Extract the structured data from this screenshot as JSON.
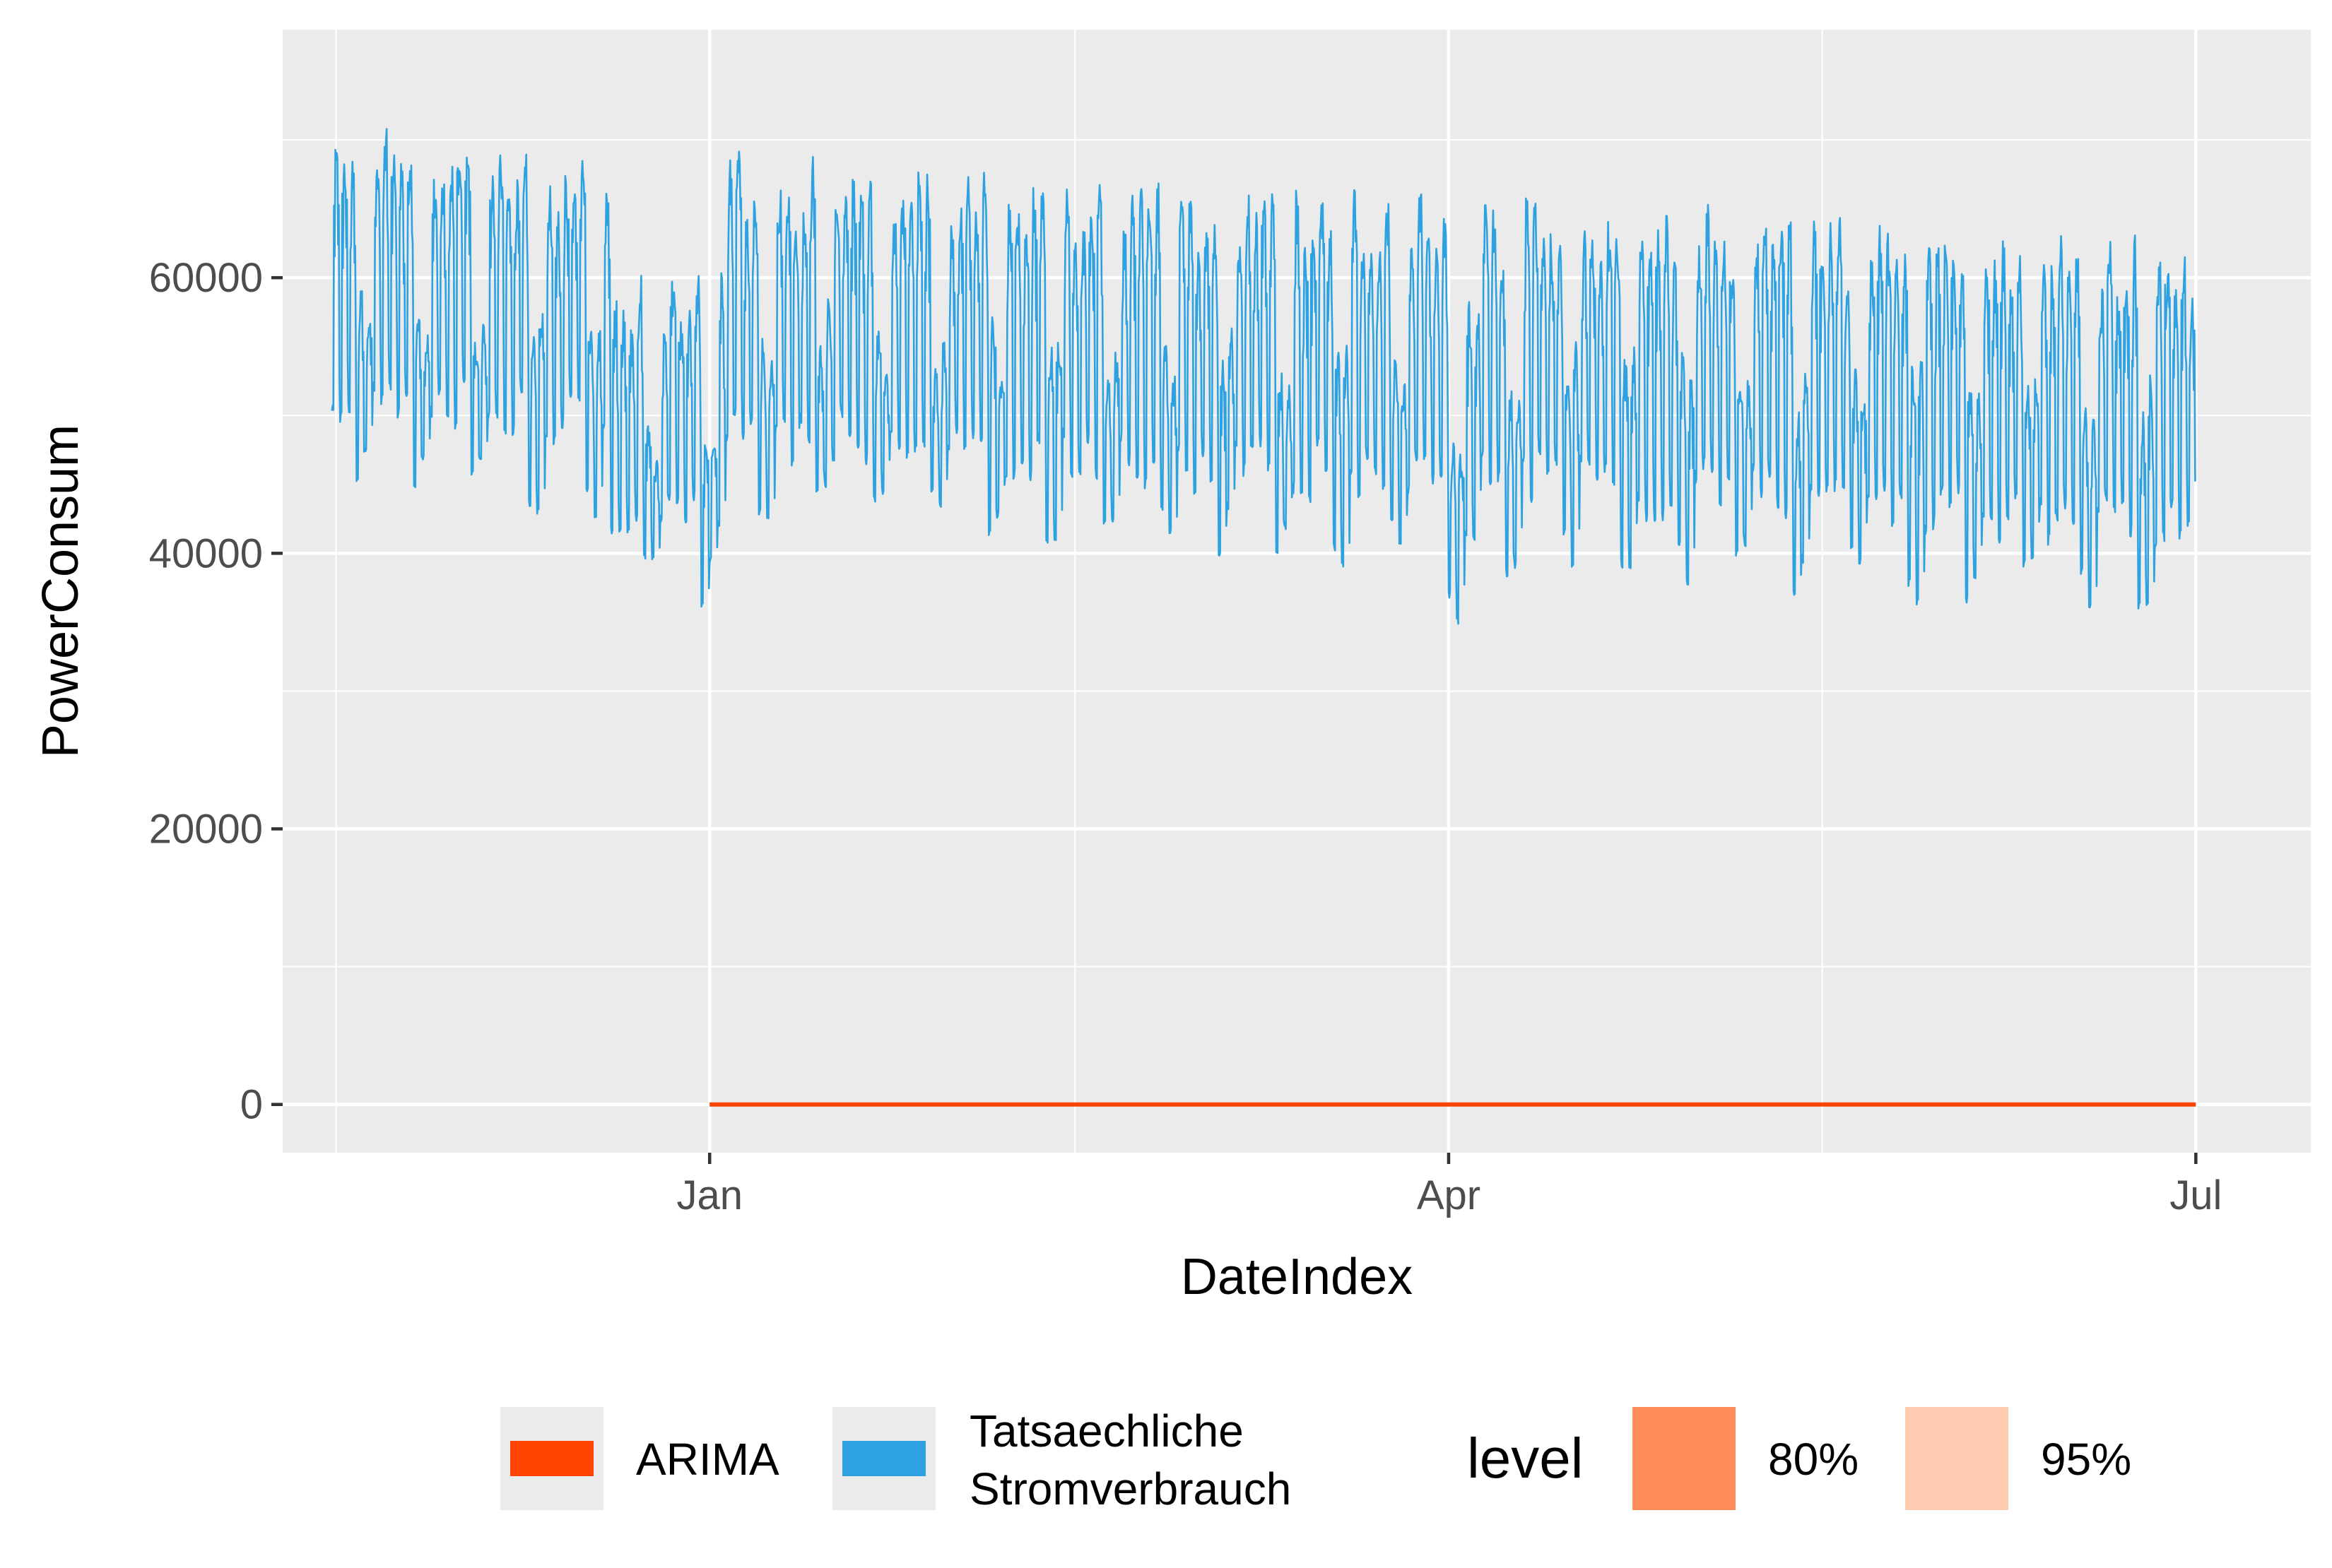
{
  "chart_data": {
    "type": "line",
    "title": "",
    "xlabel": "DateIndex",
    "ylabel": "PowerConsum",
    "x_ticks": [
      "Jan",
      "Apr",
      "Jul"
    ],
    "y_ticks": [
      "0",
      "20000",
      "40000",
      "60000"
    ],
    "xlim": [
      "2016-11-10",
      "2017-07-15"
    ],
    "ylim": [
      -3500,
      78000
    ],
    "grid": true,
    "panel_background": "#EBEBEB",
    "legend_position": "bottom",
    "series": [
      {
        "name": "Tatsaechliche\nStromverbrauch",
        "color": "#2EA1E0",
        "x_start": "2016-11-16",
        "x_end": "2017-07-01",
        "sampling": "hourly",
        "value_min": 33000,
        "value_max": 75000,
        "daily_peak_range": [
          55000,
          73000
        ],
        "daily_trough_range": [
          35000,
          52000
        ]
      },
      {
        "name": "ARIMA",
        "color": "#FF4500",
        "x": [
          "2017-01-01",
          "2017-07-01"
        ],
        "values": [
          0,
          0
        ]
      }
    ],
    "interval_levels": [
      {
        "label": "80%",
        "color": "#FF8C5A"
      },
      {
        "label": "95%",
        "color": "#FFCCB2"
      }
    ],
    "legend": {
      "series_labels": [
        "ARIMA",
        "Tatsaechliche",
        "Stromverbrauch"
      ],
      "level_title": "level",
      "level_labels": [
        "80%",
        "95%"
      ]
    }
  }
}
